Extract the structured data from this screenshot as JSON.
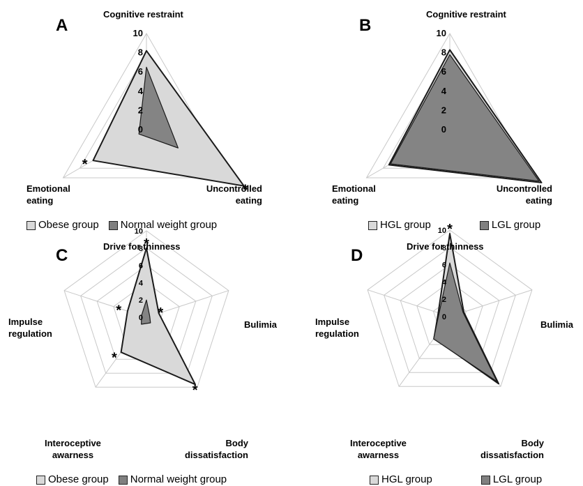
{
  "chart_data": [
    {
      "type": "radar",
      "panel": "A",
      "axes": [
        "Cognitive restraint",
        "Uncontrolled\neating",
        "Emotional\neating"
      ],
      "rmax": 10,
      "ticks": [
        0,
        2,
        4,
        6,
        8,
        10
      ],
      "series": [
        {
          "name": "Obese group",
          "values": [
            8.2,
            11.7,
            6.4
          ],
          "color": "#d9d9d9"
        },
        {
          "name": "Normal weight group",
          "values": [
            6.5,
            3.8,
            0.9
          ],
          "color": "#808080"
        }
      ],
      "significance": [
        "",
        "*",
        "*"
      ]
    },
    {
      "type": "radar",
      "panel": "B",
      "axes": [
        "Cognitive restraint",
        "Uncontrolled\neating",
        "Emotional\neating"
      ],
      "rmax": 10,
      "ticks": [
        0,
        2,
        4,
        6,
        8,
        10
      ],
      "series": [
        {
          "name": "HGL group",
          "values": [
            8.3,
            11.0,
            7.3
          ],
          "color": "#d9d9d9"
        },
        {
          "name": "LGL group",
          "values": [
            7.8,
            10.7,
            7.1
          ],
          "color": "#808080"
        }
      ],
      "significance": [
        "",
        "",
        ""
      ]
    },
    {
      "type": "radar",
      "panel": "C",
      "axes": [
        "Drive for thinness",
        "Bulimia",
        "Body\ndissatisfaction",
        "Interoceptive\nawarness",
        "Impulse\nregulation"
      ],
      "rmax": 10,
      "ticks": [
        0,
        2,
        4,
        6,
        8,
        10
      ],
      "series": [
        {
          "name": "Obese group",
          "values": [
            8.0,
            1.5,
            9.6,
            5.0,
            2.3
          ],
          "color": "#d9d9d9"
        },
        {
          "name": "Normal weight group",
          "values": [
            2.0,
            0.4,
            0.8,
            1.0,
            0.6
          ],
          "color": "#808080"
        }
      ],
      "significance": [
        "*",
        "*",
        "*",
        "*",
        "*"
      ]
    },
    {
      "type": "radar",
      "panel": "D",
      "axes": [
        "Drive for thinness",
        "Bulimia",
        "Body\ndissatisfaction",
        "Interoceptive\nawarness",
        "Impulse\nregulation"
      ],
      "rmax": 10,
      "ticks": [
        0,
        2,
        4,
        6,
        8,
        10
      ],
      "series": [
        {
          "name": "HGL group",
          "values": [
            9.6,
            1.7,
            9.6,
            3.1,
            1.4
          ],
          "color": "#d9d9d9"
        },
        {
          "name": "LGL group",
          "values": [
            6.2,
            1.6,
            9.3,
            3.2,
            1.3
          ],
          "color": "#808080"
        }
      ],
      "significance": [
        "*",
        "",
        "",
        "",
        ""
      ]
    }
  ]
}
